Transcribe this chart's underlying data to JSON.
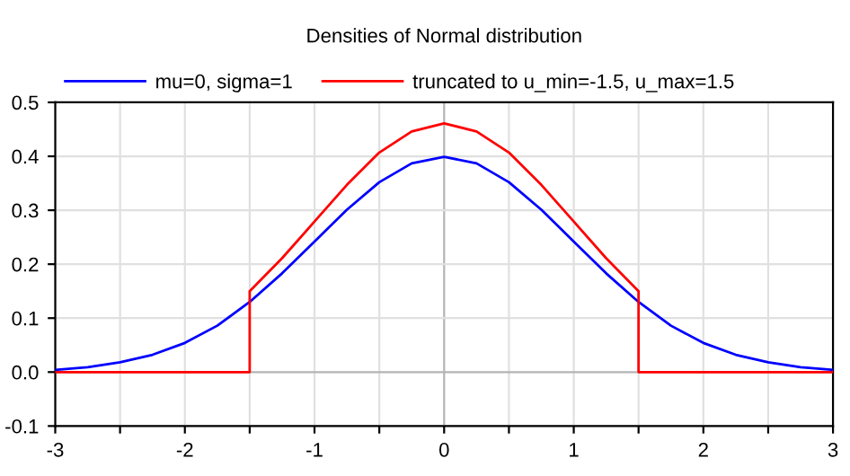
{
  "chart_data": {
    "type": "line",
    "title": "Densities of Normal distribution",
    "series": [
      {
        "name": "mu=0, sigma=1",
        "color": "#0000ff",
        "x": [
          -3,
          -2.75,
          -2.5,
          -2.25,
          -2,
          -1.75,
          -1.5,
          -1.25,
          -1,
          -0.75,
          -0.5,
          -0.25,
          0,
          0.25,
          0.5,
          0.75,
          1,
          1.25,
          1.5,
          1.75,
          2,
          2.25,
          2.5,
          2.75,
          3
        ],
        "values": [
          0.004,
          0.009,
          0.018,
          0.032,
          0.054,
          0.086,
          0.13,
          0.183,
          0.242,
          0.301,
          0.352,
          0.387,
          0.399,
          0.387,
          0.352,
          0.301,
          0.242,
          0.183,
          0.13,
          0.086,
          0.054,
          0.032,
          0.018,
          0.009,
          0.004
        ]
      },
      {
        "name": "truncated to u_min=-1.5, u_max=1.5",
        "color": "#ff0000",
        "x": [
          -3,
          -1.5,
          -1.5,
          -1.25,
          -1,
          -0.75,
          -0.5,
          -0.25,
          0,
          0.25,
          0.5,
          0.75,
          1,
          1.25,
          1.5,
          1.5,
          3
        ],
        "values": [
          0,
          0,
          0.15,
          0.211,
          0.279,
          0.347,
          0.407,
          0.446,
          0.461,
          0.446,
          0.407,
          0.347,
          0.279,
          0.211,
          0.15,
          0,
          0
        ]
      }
    ],
    "xlim": [
      -3,
      3
    ],
    "ylim": [
      -0.1,
      0.5
    ],
    "xticks": [
      -3,
      {
        "value": -2.5,
        "label": null
      },
      -2,
      {
        "value": -1.5,
        "label": null
      },
      -1,
      {
        "value": -0.5,
        "label": null
      },
      0,
      {
        "value": 0.5,
        "label": null
      },
      1,
      {
        "value": 1.5,
        "label": null
      },
      2,
      {
        "value": 2.5,
        "label": null
      },
      3
    ],
    "yticks": [
      {
        "value": -0.1,
        "label": "-0.1"
      },
      {
        "value": 0,
        "label": "0.0"
      },
      {
        "value": 0.1,
        "label": "0.1"
      },
      {
        "value": 0.2,
        "label": "0.2"
      },
      {
        "value": 0.3,
        "label": "0.3"
      },
      {
        "value": 0.4,
        "label": "0.4"
      },
      {
        "value": 0.5,
        "label": "0.5"
      }
    ],
    "grid": true,
    "legend": "top",
    "marker": "none",
    "line_style": "solid"
  }
}
